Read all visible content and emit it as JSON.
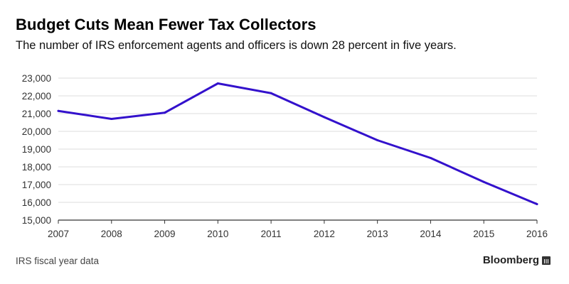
{
  "header": {
    "title": "Budget Cuts Mean Fewer Tax Collectors",
    "subtitle": "The number of IRS enforcement agents and officers is down 28 percent in five years."
  },
  "footer": {
    "source": "IRS fiscal year data",
    "brand": "Bloomberg"
  },
  "colors": {
    "line": "#3311cc",
    "grid": "#dddddd",
    "axis": "#333333"
  },
  "chart_data": {
    "type": "line",
    "title": "Budget Cuts Mean Fewer Tax Collectors",
    "subtitle": "The number of IRS enforcement agents and officers is down 28 percent in five years.",
    "xlabel": "",
    "ylabel": "",
    "x": [
      2007,
      2008,
      2009,
      2010,
      2011,
      2012,
      2013,
      2014,
      2015,
      2016
    ],
    "series": [
      {
        "values": [
          21150,
          20700,
          21050,
          22700,
          22150,
          20800,
          19500,
          18500,
          17150,
          15900
        ]
      }
    ],
    "ylim": [
      15000,
      23000
    ],
    "xlim": [
      2007,
      2016
    ],
    "yticks": [
      15000,
      16000,
      17000,
      18000,
      19000,
      20000,
      21000,
      22000,
      23000
    ],
    "ytick_labels": [
      "15,000",
      "16,000",
      "17,000",
      "18,000",
      "19,000",
      "20,000",
      "21,000",
      "22,000",
      "23,000"
    ],
    "xtick_labels": [
      "2007",
      "2008",
      "2009",
      "2010",
      "2011",
      "2012",
      "2013",
      "2014",
      "2015",
      "2016"
    ],
    "grid": true,
    "legend": "none"
  }
}
